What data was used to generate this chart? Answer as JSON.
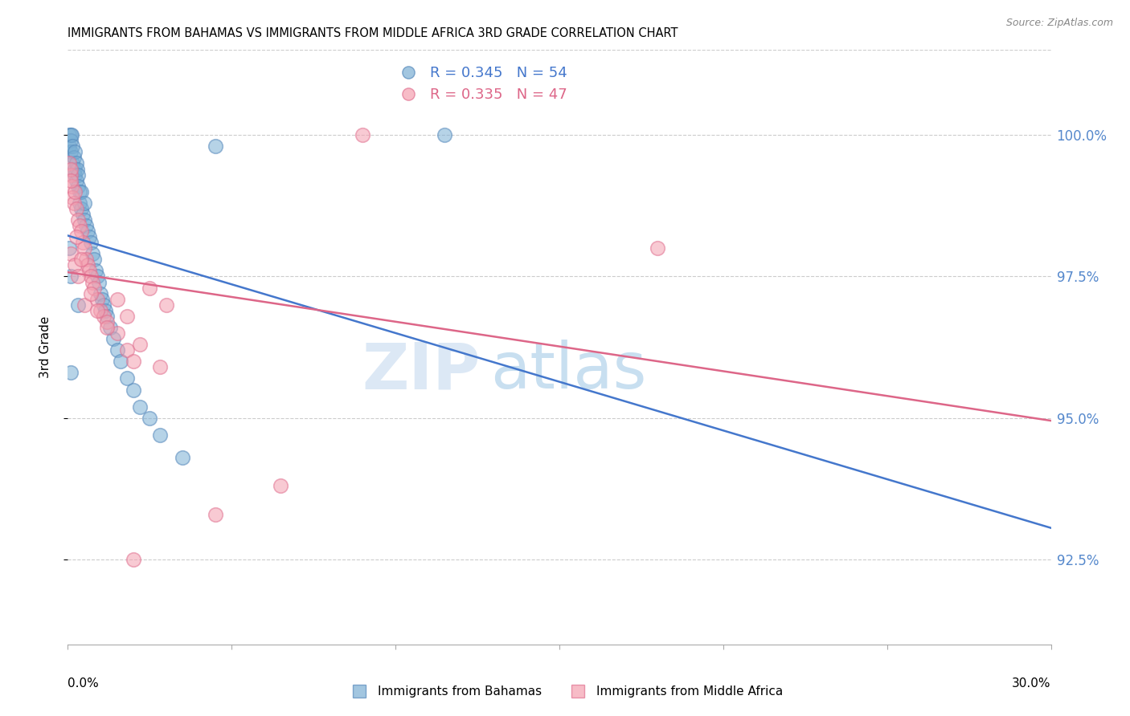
{
  "title": "IMMIGRANTS FROM BAHAMAS VS IMMIGRANTS FROM MIDDLE AFRICA 3RD GRADE CORRELATION CHART",
  "source": "Source: ZipAtlas.com",
  "ylabel": "3rd Grade",
  "x_min": 0.0,
  "x_max": 30.0,
  "y_min": 91.0,
  "y_max": 101.5,
  "yticks": [
    92.5,
    95.0,
    97.5,
    100.0
  ],
  "blue_R": 0.345,
  "blue_N": 54,
  "pink_R": 0.335,
  "pink_N": 47,
  "blue_color": "#7BAFD4",
  "pink_color": "#F4A0B0",
  "blue_edge_color": "#5588BB",
  "pink_edge_color": "#E07090",
  "blue_line_color": "#4477CC",
  "pink_line_color": "#DD6688",
  "legend_label_blue": "Immigrants from Bahamas",
  "legend_label_pink": "Immigrants from Middle Africa",
  "blue_x": [
    0.05,
    0.05,
    0.08,
    0.1,
    0.1,
    0.12,
    0.15,
    0.15,
    0.18,
    0.2,
    0.2,
    0.22,
    0.25,
    0.25,
    0.28,
    0.3,
    0.3,
    0.35,
    0.35,
    0.4,
    0.4,
    0.45,
    0.5,
    0.5,
    0.55,
    0.6,
    0.65,
    0.7,
    0.75,
    0.8,
    0.85,
    0.9,
    0.95,
    1.0,
    1.05,
    1.1,
    1.15,
    1.2,
    1.3,
    1.4,
    1.5,
    1.6,
    1.8,
    2.0,
    2.2,
    2.5,
    2.8,
    3.5,
    0.05,
    0.08,
    0.1,
    0.3,
    4.5,
    11.5
  ],
  "blue_y": [
    100.0,
    99.8,
    100.0,
    99.9,
    99.7,
    100.0,
    99.8,
    99.5,
    99.6,
    99.7,
    99.4,
    99.3,
    99.5,
    99.2,
    99.4,
    99.3,
    99.1,
    99.0,
    98.8,
    99.0,
    98.7,
    98.6,
    98.8,
    98.5,
    98.4,
    98.3,
    98.2,
    98.1,
    97.9,
    97.8,
    97.6,
    97.5,
    97.4,
    97.2,
    97.1,
    97.0,
    96.9,
    96.8,
    96.6,
    96.4,
    96.2,
    96.0,
    95.7,
    95.5,
    95.2,
    95.0,
    94.7,
    94.3,
    98.0,
    97.5,
    95.8,
    97.0,
    99.8,
    100.0
  ],
  "pink_x": [
    0.05,
    0.08,
    0.1,
    0.12,
    0.15,
    0.18,
    0.2,
    0.25,
    0.3,
    0.35,
    0.4,
    0.45,
    0.5,
    0.55,
    0.6,
    0.65,
    0.7,
    0.75,
    0.8,
    0.9,
    1.0,
    1.1,
    1.2,
    1.5,
    1.8,
    2.0,
    2.5,
    3.0,
    0.1,
    0.2,
    0.3,
    0.5,
    0.7,
    0.9,
    1.2,
    1.5,
    1.8,
    2.2,
    2.8,
    4.5,
    6.5,
    9.0,
    0.08,
    0.25,
    0.4,
    2.0,
    18.0
  ],
  "pink_y": [
    99.5,
    99.3,
    99.4,
    99.1,
    98.9,
    98.8,
    99.0,
    98.7,
    98.5,
    98.4,
    98.3,
    98.1,
    98.0,
    97.8,
    97.7,
    97.6,
    97.5,
    97.4,
    97.3,
    97.1,
    96.9,
    96.8,
    96.7,
    96.5,
    96.2,
    96.0,
    97.3,
    97.0,
    97.9,
    97.7,
    97.5,
    97.0,
    97.2,
    96.9,
    96.6,
    97.1,
    96.8,
    96.3,
    95.9,
    93.3,
    93.8,
    100.0,
    99.2,
    98.2,
    97.8,
    92.5,
    98.0
  ]
}
